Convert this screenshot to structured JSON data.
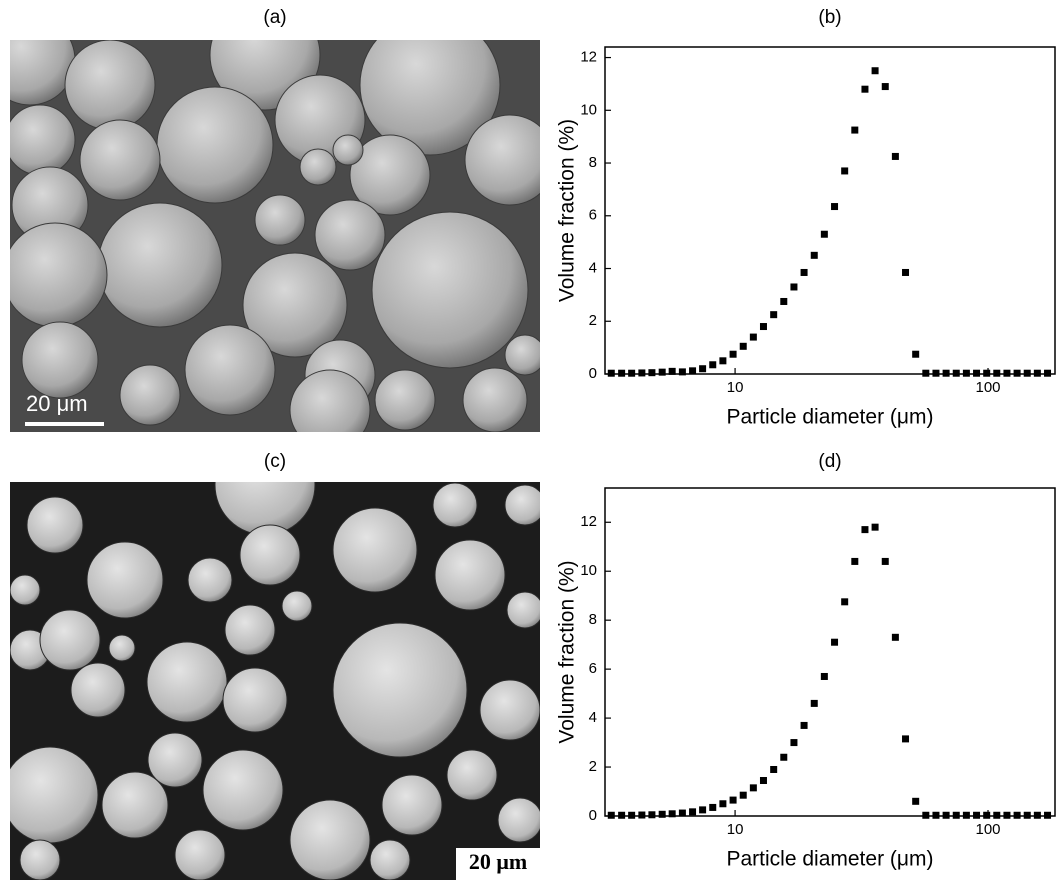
{
  "panels": {
    "a": {
      "label": "(a)",
      "scale_bar": "20 μm"
    },
    "c": {
      "label": "(c)",
      "scale_bar": "20 μm"
    }
  },
  "chart_data": [
    {
      "type": "scatter",
      "title": "(b)",
      "x_label": "Particle diameter (μm)",
      "y_label": "Volume fraction (%)",
      "x_scale": "log",
      "xlim": [
        3.06,
        184
      ],
      "xticks": [
        10,
        100
      ],
      "ylim": [
        0,
        12.4
      ],
      "yticks": [
        0,
        2,
        4,
        6,
        8,
        10,
        12
      ],
      "color": "#000000",
      "x": [
        3.24,
        3.56,
        3.9,
        4.28,
        4.69,
        5.15,
        5.64,
        6.19,
        6.79,
        7.44,
        8.16,
        8.95,
        9.82,
        10.77,
        11.81,
        12.95,
        14.21,
        15.58,
        17.09,
        18.74,
        20.56,
        22.54,
        24.73,
        27.12,
        29.74,
        32.62,
        35.77,
        39.24,
        43.03,
        47.19,
        51.76,
        56.77,
        62.26,
        68.28,
        74.89,
        82.13,
        90.08,
        98.8,
        108.3,
        118.8,
        130.3,
        142.9,
        156.7,
        171.9
      ],
      "values": [
        0.03,
        0.03,
        0.03,
        0.04,
        0.05,
        0.07,
        0.1,
        0.08,
        0.12,
        0.2,
        0.35,
        0.5,
        0.75,
        1.05,
        1.4,
        1.8,
        2.25,
        2.75,
        3.3,
        3.85,
        4.5,
        5.3,
        6.35,
        7.7,
        9.25,
        10.8,
        11.5,
        10.9,
        8.25,
        3.85,
        0.75,
        0.03,
        0.03,
        0.03,
        0.03,
        0.03,
        0.03,
        0.03,
        0.03,
        0.03,
        0.03,
        0.03,
        0.03,
        0.03
      ]
    },
    {
      "type": "scatter",
      "title": "(d)",
      "x_label": "Particle diameter (μm)",
      "y_label": "Volume fraction (%)",
      "x_scale": "log",
      "xlim": [
        3.06,
        184
      ],
      "xticks": [
        10,
        100
      ],
      "ylim": [
        0,
        13.4
      ],
      "yticks": [
        0,
        2,
        4,
        6,
        8,
        10,
        12
      ],
      "color": "#000000",
      "x": [
        3.24,
        3.56,
        3.9,
        4.28,
        4.69,
        5.15,
        5.64,
        6.19,
        6.79,
        7.44,
        8.16,
        8.95,
        9.82,
        10.77,
        11.81,
        12.95,
        14.21,
        15.58,
        17.09,
        18.74,
        20.56,
        22.54,
        24.73,
        27.12,
        29.74,
        32.62,
        35.77,
        39.24,
        43.03,
        47.19,
        51.76,
        56.77,
        62.26,
        68.28,
        74.89,
        82.13,
        90.08,
        98.8,
        108.3,
        118.8,
        130.3,
        142.9,
        156.7,
        171.9
      ],
      "values": [
        0.03,
        0.03,
        0.03,
        0.04,
        0.05,
        0.07,
        0.09,
        0.12,
        0.17,
        0.25,
        0.35,
        0.5,
        0.65,
        0.85,
        1.15,
        1.45,
        1.9,
        2.4,
        3.0,
        3.7,
        4.6,
        5.7,
        7.1,
        8.75,
        10.4,
        11.7,
        11.8,
        10.4,
        7.3,
        3.15,
        0.6,
        0.03,
        0.03,
        0.03,
        0.03,
        0.03,
        0.03,
        0.03,
        0.03,
        0.03,
        0.03,
        0.03,
        0.03,
        0.03
      ]
    }
  ]
}
